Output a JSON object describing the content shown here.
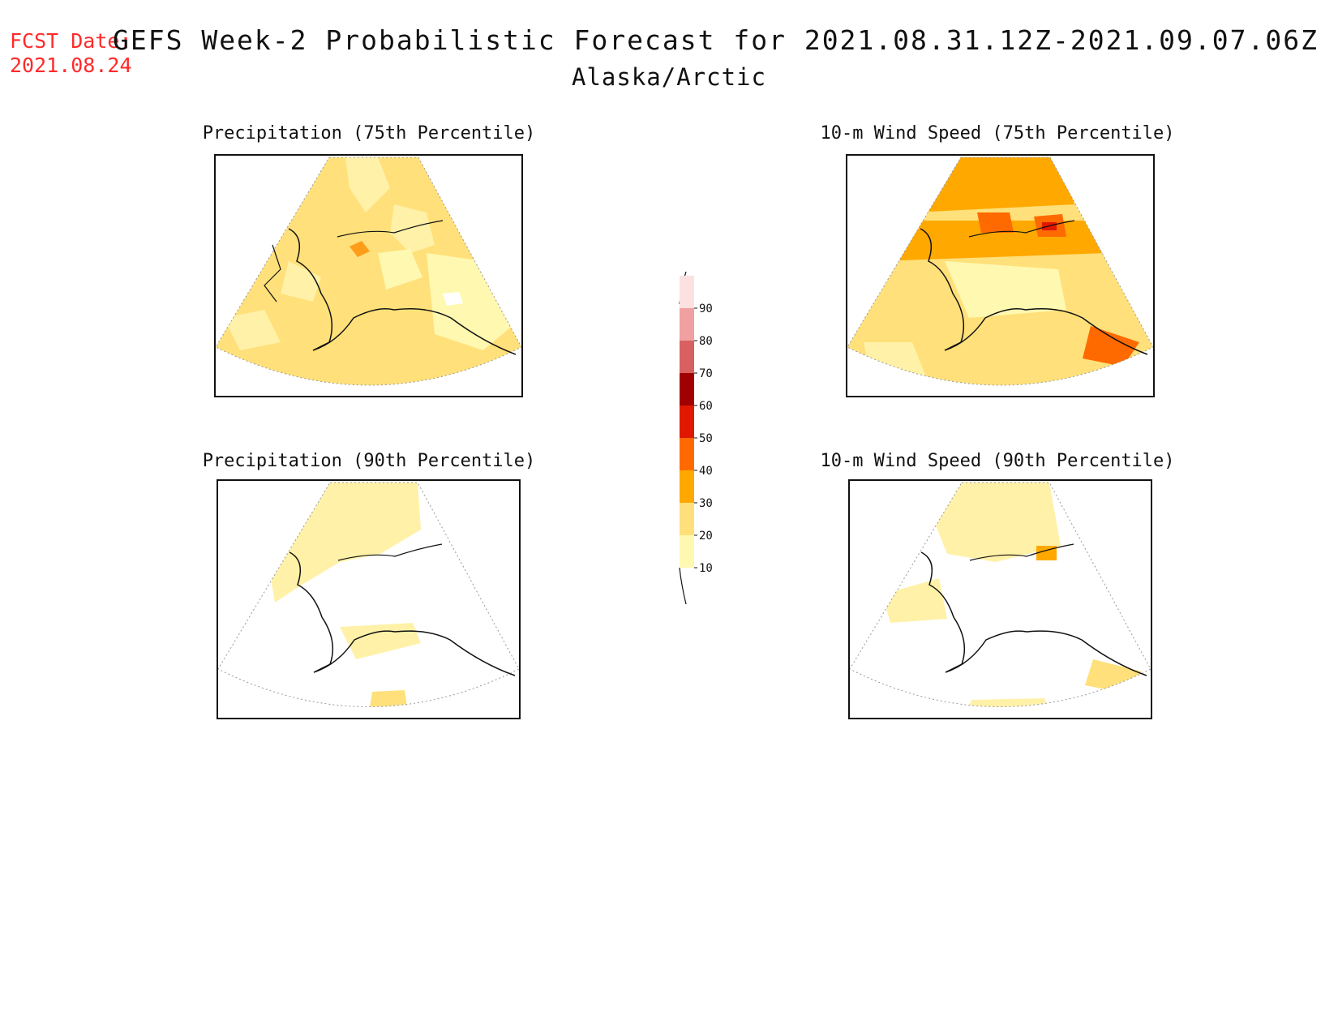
{
  "header": {
    "fcst_label": "FCST Date:",
    "fcst_date": "2021.08.24",
    "title": "GEFS Week-2 Probabilistic Forecast for 2021.08.31.12Z-2021.09.07.06Z",
    "subtitle": "Alaska/Arctic"
  },
  "panels": [
    {
      "title": "Precipitation (75th Percentile)"
    },
    {
      "title": "10-m Wind Speed (75th Percentile)"
    },
    {
      "title": "Precipitation (90th Percentile)"
    },
    {
      "title": "10-m Wind Speed (90th Percentile)"
    }
  ],
  "legend": {
    "levels": [
      {
        "label": "10",
        "color": "#fff8b0"
      },
      {
        "label": "20",
        "color": "#ffe07a"
      },
      {
        "label": "30",
        "color": "#ffa800"
      },
      {
        "label": "40",
        "color": "#ff6a00"
      },
      {
        "label": "50",
        "color": "#e01800"
      },
      {
        "label": "60",
        "color": "#a00000"
      },
      {
        "label": "70",
        "color": "#d96060"
      },
      {
        "label": "80",
        "color": "#f0a0a0"
      },
      {
        "label": "90",
        "color": "#fde0e0"
      }
    ]
  }
}
